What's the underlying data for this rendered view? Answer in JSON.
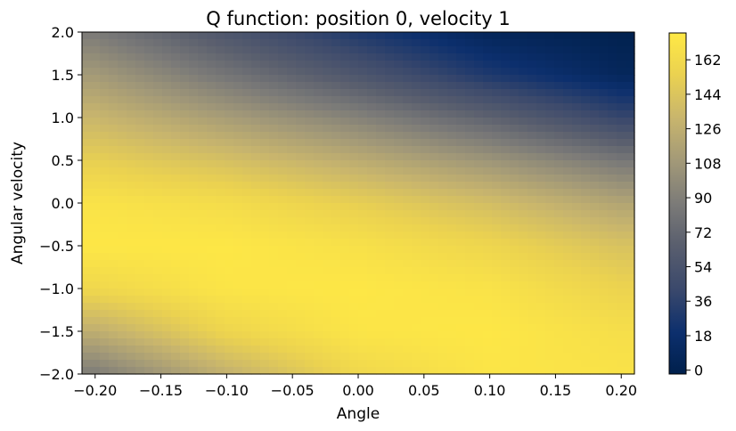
{
  "chart_data": {
    "type": "heatmap",
    "title": "Q function: position 0, velocity 1",
    "xlabel": "Angle",
    "ylabel": "Angular velocity",
    "xlim": [
      -0.21,
      0.21
    ],
    "ylim": [
      -2.0,
      2.0
    ],
    "x_ticks": [
      "−0.20",
      "−0.15",
      "−0.10",
      "−0.05",
      "0.00",
      "0.05",
      "0.10",
      "0.15",
      "0.20"
    ],
    "y_ticks": [
      "−2.0",
      "−1.5",
      "−1.0",
      "−0.5",
      "0.0",
      "0.5",
      "1.0",
      "1.5",
      "2.0"
    ],
    "colorbar": {
      "colormap": "cividis",
      "range": [
        -2,
        176
      ],
      "ticks": [
        "0",
        "18",
        "36",
        "54",
        "72",
        "90",
        "108",
        "126",
        "144",
        "162"
      ]
    },
    "z_model": {
      "description_grid": "approximate Q value samples (rows: angular velocity from -2 to 2 step 0.5; cols: angle from -0.2 to 0.2 step 0.1)",
      "angles": [
        -0.2,
        -0.1,
        0.0,
        0.1,
        0.2
      ],
      "velocities": [
        -2.0,
        -1.5,
        -1.0,
        -0.5,
        0.0,
        0.5,
        1.0,
        1.5,
        2.0
      ],
      "values": [
        [
          88,
          128,
          160,
          172,
          170
        ],
        [
          126,
          158,
          172,
          174,
          166
        ],
        [
          160,
          172,
          174,
          170,
          156
        ],
        [
          174,
          174,
          168,
          158,
          142
        ],
        [
          170,
          164,
          152,
          138,
          118
        ],
        [
          152,
          140,
          124,
          106,
          84
        ],
        [
          132,
          112,
          92,
          68,
          40
        ],
        [
          110,
          82,
          56,
          28,
          8
        ],
        [
          86,
          56,
          28,
          6,
          0
        ]
      ]
    }
  }
}
